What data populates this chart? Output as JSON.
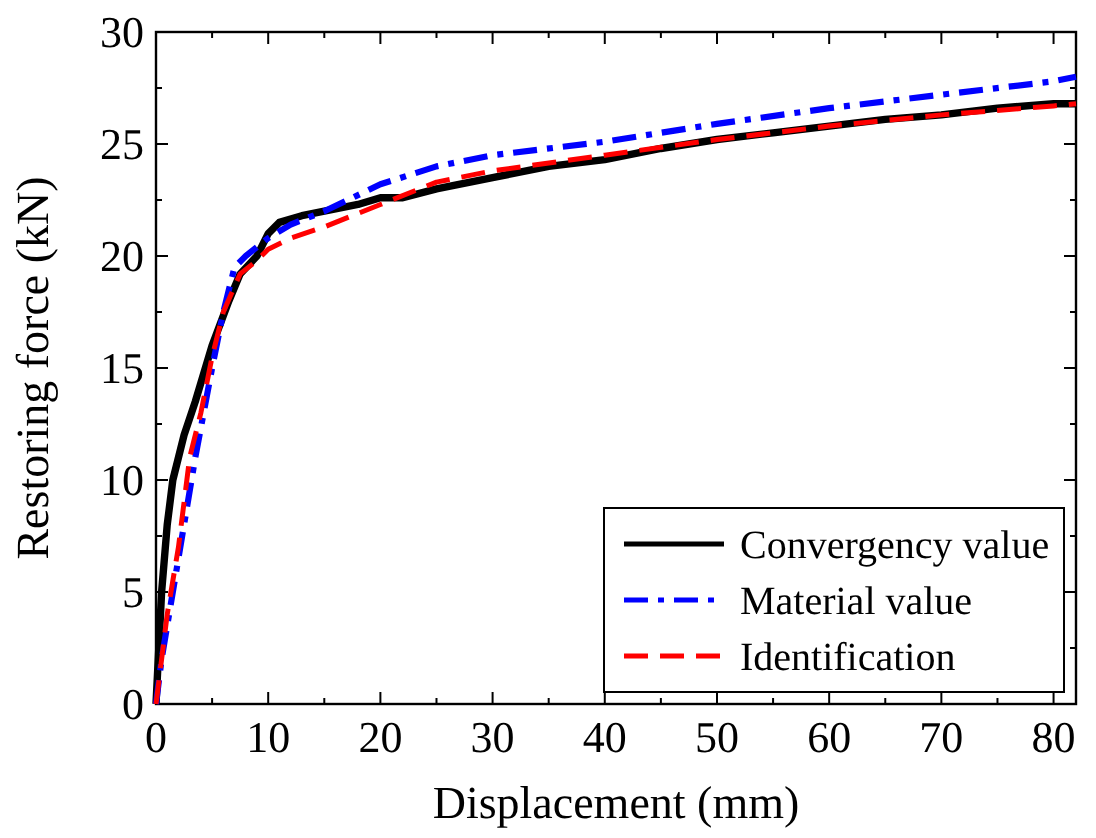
{
  "chart_data": {
    "type": "line",
    "xlabel": "Displacement (mm)",
    "ylabel": "Restoring force (kN)",
    "xlim": [
      0,
      82
    ],
    "ylim": [
      0,
      30
    ],
    "xticks": [
      0,
      {
        "value": 5,
        "label": null
      },
      10,
      {
        "value": 15,
        "label": null
      },
      20,
      {
        "value": 25,
        "label": null
      },
      30,
      {
        "value": 35,
        "label": null
      },
      40,
      {
        "value": 45,
        "label": null
      },
      50,
      {
        "value": 55,
        "label": null
      },
      60,
      {
        "value": 65,
        "label": null
      },
      70,
      {
        "value": 75,
        "label": null
      },
      80
    ],
    "yticks": [
      0,
      {
        "value": 2.5,
        "label": null
      },
      5,
      {
        "value": 7.5,
        "label": null
      },
      10,
      {
        "value": 12.5,
        "label": null
      },
      15,
      {
        "value": 17.5,
        "label": null
      },
      20,
      {
        "value": 22.5,
        "label": null
      },
      25,
      {
        "value": 27.5,
        "label": null
      },
      30
    ],
    "legend": "bottom right",
    "grid": false,
    "series": [
      {
        "name": "Convergency value",
        "color": "#000000",
        "line_style": "solid",
        "x": [
          0,
          0.3,
          0.5,
          1,
          1.5,
          2.5,
          3.5,
          5,
          6.5,
          7.5,
          9,
          10,
          11,
          13,
          15,
          18,
          20,
          22,
          25,
          30,
          35,
          40,
          45,
          50,
          55,
          60,
          65,
          70,
          75,
          80,
          82
        ],
        "values": [
          0,
          3,
          5,
          8,
          10,
          12,
          13.5,
          16,
          18,
          19.2,
          20,
          21,
          21.5,
          21.8,
          22,
          22.3,
          22.6,
          22.6,
          23,
          23.5,
          24,
          24.3,
          24.8,
          25.2,
          25.5,
          25.8,
          26.1,
          26.3,
          26.6,
          26.8,
          26.8
        ]
      },
      {
        "name": "Material value",
        "color": "#0000ff",
        "line_style": "dashdot",
        "x": [
          0,
          0.5,
          1.5,
          2.5,
          3.5,
          5,
          6,
          7,
          8,
          10,
          12,
          15,
          20,
          25,
          30,
          40,
          50,
          60,
          70,
          80,
          82
        ],
        "values": [
          0,
          2,
          5,
          8,
          11,
          15,
          17.5,
          19.5,
          20,
          20.8,
          21.4,
          22,
          23.2,
          24,
          24.5,
          25.1,
          25.9,
          26.6,
          27.2,
          27.8,
          28
        ]
      },
      {
        "name": "Identification",
        "color": "#ff0000",
        "line_style": "dashed",
        "x": [
          0,
          0.5,
          1,
          2,
          3,
          4,
          5,
          6,
          7.5,
          9,
          10,
          12,
          15,
          20,
          25,
          30,
          40,
          50,
          60,
          70,
          80,
          82
        ],
        "values": [
          0,
          2,
          4,
          7,
          11,
          13,
          15.5,
          17.5,
          19.2,
          19.8,
          20.3,
          20.8,
          21.3,
          22.3,
          23.3,
          23.8,
          24.5,
          25.2,
          25.8,
          26.3,
          26.7,
          26.8
        ]
      }
    ]
  }
}
